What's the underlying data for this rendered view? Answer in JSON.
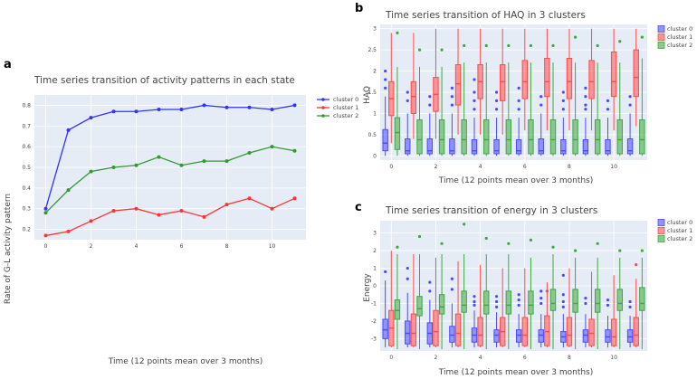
{
  "chart_data": [
    {
      "panel": "a",
      "type": "line",
      "title": "Time series transition of activity patterns in each state",
      "xlabel": "Time (12 points mean over 3 months)",
      "ylabel": "Rate of G-L activity pattern",
      "xlim": [
        -0.5,
        11.5
      ],
      "ylim": [
        0.15,
        0.85
      ],
      "xticks": [
        0,
        2,
        4,
        6,
        8,
        10
      ],
      "yticks": [
        0.2,
        0.3,
        0.4,
        0.5,
        0.6,
        0.7,
        0.8
      ],
      "x": [
        0,
        1,
        2,
        3,
        4,
        5,
        6,
        7,
        8,
        9,
        10,
        11
      ],
      "series": [
        {
          "name": "cluster 0",
          "color": "#3333ff",
          "values": [
            0.3,
            0.68,
            0.74,
            0.77,
            0.77,
            0.78,
            0.78,
            0.8,
            0.79,
            0.79,
            0.78,
            0.8
          ]
        },
        {
          "name": "cluster 1",
          "color": "#ff3333",
          "values": [
            0.17,
            0.19,
            0.24,
            0.29,
            0.3,
            0.27,
            0.29,
            0.26,
            0.32,
            0.35,
            0.3,
            0.35
          ]
        },
        {
          "name": "cluster 2",
          "color": "#339933",
          "values": [
            0.28,
            0.39,
            0.48,
            0.5,
            0.51,
            0.55,
            0.51,
            0.53,
            0.53,
            0.57,
            0.6,
            0.58
          ]
        }
      ],
      "legend": "top-right"
    },
    {
      "panel": "b",
      "type": "box",
      "title": "Time series transition of HAQ in 3 clusters",
      "xlabel": "Time (12 points mean over 3 months)",
      "ylabel": "HAQ",
      "xlim": [
        -0.5,
        11.5
      ],
      "ylim": [
        -0.1,
        3.1
      ],
      "xticks": [
        0,
        2,
        4,
        6,
        8,
        10
      ],
      "yticks": [
        0,
        0.5,
        1,
        1.5,
        2,
        2.5,
        3
      ],
      "x": [
        0,
        1,
        2,
        3,
        4,
        5,
        6,
        7,
        8,
        9,
        10,
        11
      ],
      "series": [
        {
          "name": "cluster 0",
          "color": "#4a4aff",
          "q1": [
            0.12,
            0.05,
            0.05,
            0.05,
            0.05,
            0.05,
            0.05,
            0.05,
            0.05,
            0.05,
            0.05,
            0.05
          ],
          "median": [
            0.3,
            0.12,
            0.12,
            0.12,
            0.12,
            0.12,
            0.12,
            0.12,
            0.12,
            0.12,
            0.12,
            0.12
          ],
          "q3": [
            0.62,
            0.4,
            0.4,
            0.4,
            0.38,
            0.38,
            0.38,
            0.4,
            0.38,
            0.38,
            0.38,
            0.4
          ],
          "whisker_low": [
            0,
            0,
            0,
            0,
            0,
            0,
            0,
            0,
            0,
            0,
            0,
            0
          ],
          "whisker_high": [
            1.4,
            1.0,
            1.0,
            1.0,
            0.9,
            0.9,
            0.9,
            1.0,
            0.9,
            0.9,
            0.9,
            1.0
          ],
          "outliers": [
            [
              1.6,
              1.8,
              2.0
            ],
            [
              1.3,
              1.5
            ],
            [
              1.2,
              1.4
            ],
            [
              1.2,
              1.4,
              1.6
            ],
            [
              1.1,
              1.3,
              1.5,
              1.8
            ],
            [
              1.1,
              1.3,
              1.5
            ],
            [
              1.1,
              1.3,
              1.6
            ],
            [
              1.2,
              1.4
            ],
            [
              1.1,
              1.3,
              1.5
            ],
            [
              1.1,
              1.2,
              1.4,
              1.6
            ],
            [
              1.1,
              1.3
            ],
            [
              1.2,
              1.4
            ]
          ]
        },
        {
          "name": "cluster 1",
          "color": "#ff4a4a",
          "q1": [
            0.95,
            1.0,
            1.05,
            1.2,
            1.35,
            1.3,
            1.35,
            1.4,
            1.35,
            1.35,
            1.4,
            1.4
          ],
          "median": [
            1.35,
            1.4,
            1.45,
            1.7,
            1.75,
            1.75,
            1.75,
            1.75,
            1.75,
            1.75,
            1.75,
            1.85
          ],
          "q3": [
            1.75,
            1.75,
            1.85,
            2.15,
            2.15,
            2.15,
            2.25,
            2.3,
            2.3,
            2.25,
            2.45,
            2.5
          ],
          "whisker_low": [
            0.3,
            0.4,
            0.4,
            0.5,
            0.5,
            0.5,
            0.6,
            0.6,
            0.6,
            0.6,
            0.6,
            0.7
          ],
          "whisker_high": [
            2.9,
            2.9,
            3.0,
            3.0,
            3.0,
            3.0,
            3.0,
            3.0,
            3.0,
            3.0,
            3.0,
            3.0
          ],
          "outliers": [
            [],
            [],
            [],
            [],
            [],
            [],
            [],
            [],
            [],
            [],
            [],
            []
          ]
        },
        {
          "name": "cluster 2",
          "color": "#3fa73f",
          "q1": [
            0.15,
            0.05,
            0.05,
            0.05,
            0.05,
            0.05,
            0.05,
            0.05,
            0.05,
            0.05,
            0.05,
            0.05
          ],
          "median": [
            0.55,
            0.38,
            0.38,
            0.38,
            0.38,
            0.38,
            0.38,
            0.38,
            0.38,
            0.38,
            0.38,
            0.38
          ],
          "q3": [
            0.9,
            0.85,
            0.85,
            0.85,
            0.85,
            0.85,
            0.85,
            0.85,
            0.85,
            0.85,
            0.85,
            0.85
          ],
          "whisker_low": [
            0,
            0,
            0,
            0,
            0,
            0,
            0,
            0,
            0,
            0,
            0,
            0
          ],
          "whisker_high": [
            2.1,
            2.1,
            2.1,
            2.2,
            2.2,
            2.2,
            2.2,
            2.2,
            2.2,
            2.2,
            2.2,
            2.3
          ],
          "outliers": [
            [
              2.9
            ],
            [
              2.5
            ],
            [
              2.5
            ],
            [
              2.6
            ],
            [
              2.6
            ],
            [
              2.6
            ],
            [
              2.6
            ],
            [
              2.6
            ],
            [
              2.8
            ],
            [
              2.6
            ],
            [
              2.7
            ],
            [
              2.8
            ]
          ]
        }
      ],
      "legend": "top-right"
    },
    {
      "panel": "c",
      "type": "box",
      "title": "Time series transition of energy in 3 clusters",
      "xlabel": "Time (12 points mean over 3 months)",
      "ylabel": "Energy",
      "xlim": [
        -0.5,
        11.5
      ],
      "ylim": [
        -3.7,
        3.7
      ],
      "xticks": [
        0,
        2,
        4,
        6,
        8,
        10
      ],
      "yticks": [
        -3,
        -2,
        -1,
        0,
        1,
        2,
        3
      ],
      "x": [
        0,
        1,
        2,
        3,
        4,
        5,
        6,
        7,
        8,
        9,
        10,
        11
      ],
      "series": [
        {
          "name": "cluster 0",
          "color": "#4a4aff",
          "q1": [
            -3.0,
            -3.3,
            -3.3,
            -3.2,
            -3.2,
            -3.2,
            -3.2,
            -3.2,
            -3.2,
            -3.2,
            -3.2,
            -3.2
          ],
          "median": [
            -2.5,
            -2.7,
            -2.7,
            -2.8,
            -2.8,
            -2.8,
            -2.8,
            -2.8,
            -2.9,
            -2.8,
            -2.9,
            -2.9
          ],
          "q3": [
            -1.9,
            -2.0,
            -2.1,
            -2.3,
            -2.4,
            -2.5,
            -2.5,
            -2.5,
            -2.6,
            -2.5,
            -2.5,
            -2.5
          ],
          "whisker_low": [
            -3.5,
            -3.5,
            -3.5,
            -3.5,
            -3.5,
            -3.5,
            -3.5,
            -3.5,
            -3.5,
            -3.5,
            -3.5,
            -3.5
          ],
          "whisker_high": [
            0.3,
            -0.4,
            -0.8,
            -1.0,
            -1.4,
            -1.5,
            -1.6,
            -1.6,
            -1.6,
            -1.6,
            -1.7,
            -1.7
          ],
          "outliers": [
            [
              0.8
            ],
            [
              1.0,
              0.4
            ],
            [
              0.2,
              -0.3
            ],
            [
              0.4,
              -0.2
            ],
            [
              -0.6,
              -0.9,
              -1.1
            ],
            [
              -0.6,
              -0.9,
              -1.2
            ],
            [
              -0.5,
              -0.8,
              -1.1
            ],
            [
              -0.3,
              -0.7,
              -1.0
            ],
            [
              0.6,
              -0.5,
              -0.9,
              -1.2
            ],
            [
              -0.7,
              -1.0
            ],
            [
              -0.8,
              -1.1
            ],
            [
              -0.9,
              -1.2
            ]
          ]
        },
        {
          "name": "cluster 1",
          "color": "#ff4a4a",
          "q1": [
            -3.4,
            -3.4,
            -3.4,
            -3.4,
            -3.4,
            -3.4,
            -3.4,
            -3.4,
            -3.4,
            -3.4,
            -3.4,
            -3.4
          ],
          "median": [
            -2.4,
            -2.7,
            -2.6,
            -2.7,
            -2.8,
            -2.6,
            -2.8,
            -2.6,
            -2.8,
            -2.7,
            -2.9,
            -2.8
          ],
          "q3": [
            -1.4,
            -1.6,
            -1.4,
            -1.6,
            -1.8,
            -1.8,
            -1.8,
            -1.7,
            -1.8,
            -1.9,
            -1.9,
            -1.8
          ],
          "whisker_low": [
            -3.5,
            -3.5,
            -3.5,
            -3.5,
            -3.5,
            -3.5,
            -3.5,
            -3.5,
            -3.5,
            -3.5,
            -3.5,
            -3.5
          ],
          "whisker_high": [
            2.0,
            1.8,
            1.6,
            1.4,
            1.2,
            1.0,
            1.0,
            0.2,
            1.0,
            0.8,
            0.6,
            0.4
          ],
          "outliers": [
            [],
            [],
            [],
            [],
            [],
            [],
            [],
            [
              -0.3
            ],
            [],
            [],
            [],
            [
              1.2
            ]
          ]
        },
        {
          "name": "cluster 2",
          "color": "#3fa73f",
          "q1": [
            -1.9,
            -1.7,
            -1.6,
            -1.5,
            -1.6,
            -1.6,
            -1.6,
            -1.4,
            -1.5,
            -1.5,
            -1.4,
            -1.4
          ],
          "median": [
            -1.4,
            -1.3,
            -1.2,
            -1.1,
            -1.1,
            -1.1,
            -1.1,
            -1.0,
            -1.0,
            -1.0,
            -1.0,
            -1.0
          ],
          "q3": [
            -0.8,
            -0.6,
            -0.5,
            -0.3,
            -0.3,
            -0.3,
            -0.3,
            -0.2,
            -0.2,
            -0.2,
            -0.2,
            -0.1
          ],
          "whisker_low": [
            -3.6,
            -3.6,
            -3.6,
            -3.6,
            -3.6,
            -3.6,
            -3.6,
            -3.6,
            -3.6,
            -3.6,
            -3.6,
            -3.6
          ],
          "whisker_high": [
            1.8,
            1.8,
            1.8,
            1.8,
            1.8,
            1.8,
            1.6,
            1.8,
            1.6,
            1.6,
            1.6,
            1.6
          ],
          "outliers": [
            [
              2.2
            ],
            [
              2.8
            ],
            [
              2.4
            ],
            [
              3.5
            ],
            [
              2.7
            ],
            [
              2.4
            ],
            [
              2.6
            ],
            [
              2.2
            ],
            [
              2.0
            ],
            [
              2.4
            ],
            [
              2.0
            ],
            [
              2.0
            ]
          ]
        }
      ],
      "legend": "top-right"
    }
  ],
  "panel_labels": {
    "a": "a",
    "b": "b",
    "c": "c"
  }
}
